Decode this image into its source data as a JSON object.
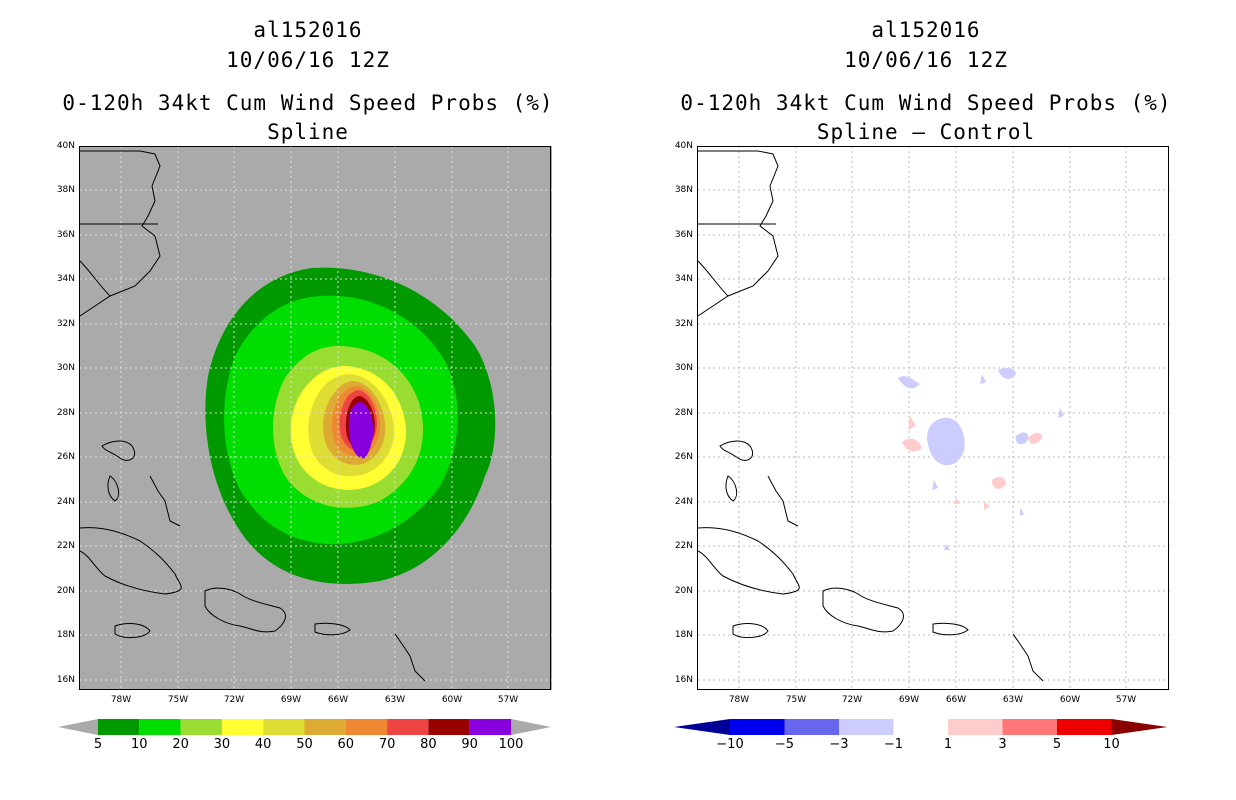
{
  "left": {
    "storm_id": "al152016",
    "datetime": "10/06/16 12Z",
    "product": "0-120h 34kt Cum Wind Speed Probs (%)",
    "subtitle": "Spline",
    "colorbar": {
      "colors": [
        "#009900",
        "#00dd00",
        "#99dd33",
        "#ffff33",
        "#dddd33",
        "#ddaa33",
        "#ee8833",
        "#ee4444",
        "#990000",
        "#8800dd"
      ],
      "end_colors": [
        "#aaaaaa",
        "#aaaaaa"
      ],
      "labels": [
        "5",
        "10",
        "20",
        "30",
        "40",
        "50",
        "60",
        "70",
        "80",
        "90",
        "100"
      ]
    }
  },
  "right": {
    "storm_id": "al152016",
    "datetime": "10/06/16 12Z",
    "product": "0-120h 34kt Cum Wind Speed Probs (%)",
    "subtitle": "Spline – Control",
    "colorbar": {
      "colors": [
        "#0000ee",
        "#6666ee",
        "#ccccff",
        "#ffffff",
        "#ffcccc",
        "#ff7777",
        "#ee0000"
      ],
      "end_colors": [
        "#000099",
        "#880000"
      ],
      "labels": [
        "−10",
        "−5",
        "−3",
        "−1",
        "1",
        "3",
        "5",
        "10"
      ]
    }
  },
  "axes": {
    "lat_labels": [
      "40N",
      "38N",
      "36N",
      "34N",
      "32N",
      "30N",
      "28N",
      "26N",
      "24N",
      "22N",
      "20N",
      "18N",
      "16N"
    ],
    "lon_labels": [
      "78W",
      "75W",
      "72W",
      "69W",
      "66W",
      "63W",
      "60W",
      "57W"
    ]
  },
  "map_data": {
    "type": "contour",
    "extent": {
      "lon_min": -80.0,
      "lon_max": -55.0,
      "lat_min": 15.5,
      "lat_max": 40.0
    },
    "left_bands_percent": [
      5,
      10,
      20,
      30,
      40,
      50,
      60,
      70,
      80,
      90,
      100
    ],
    "right_bands_percent": [
      -10,
      -5,
      -3,
      -1,
      1,
      3,
      5,
      10
    ],
    "background_color_left": "#aaaaaa",
    "background_color_right": "#ffffff",
    "grid_color": "#cccccc"
  }
}
